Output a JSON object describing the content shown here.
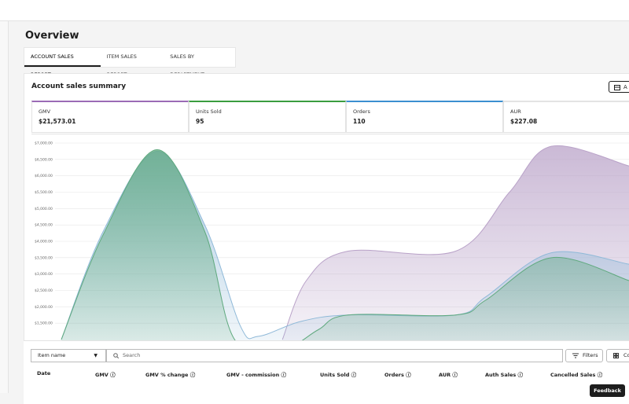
{
  "header": {
    "title": "Overview"
  },
  "tabs": [
    "ACCOUNT SALES REPORT",
    "ITEM SALES REPORT",
    "SALES BY DEPARTMENT"
  ],
  "summary": {
    "title": "Account sales summary",
    "button": "A",
    "metrics": [
      {
        "label": "GMV",
        "value": "$21,573.01",
        "color": "#9b6bb5"
      },
      {
        "label": "Units Sold",
        "value": "95",
        "color": "#3a9d3f"
      },
      {
        "label": "Orders",
        "value": "110",
        "color": "#3b8fd0"
      },
      {
        "label": "AUR",
        "value": "$227.08"
      }
    ]
  },
  "chart_data": {
    "type": "area",
    "xlim": [
      0,
      100
    ],
    "ylim": [
      1000,
      7000
    ],
    "grid": true,
    "yticks": [
      {
        "value": 7000,
        "label": "$7,000.00"
      },
      {
        "value": 6500,
        "label": "$6,500.00"
      },
      {
        "value": 6000,
        "label": "$6,000.00"
      },
      {
        "value": 5500,
        "label": "$5,500.00"
      },
      {
        "value": 5000,
        "label": "$5,000.00"
      },
      {
        "value": 4500,
        "label": "$4,500.00"
      },
      {
        "value": 4000,
        "label": "$4,000.00"
      },
      {
        "value": 3500,
        "label": "$3,500.00"
      },
      {
        "value": 3000,
        "label": "$3,000.00"
      },
      {
        "value": 2500,
        "label": "$2,500.00"
      },
      {
        "value": 2000,
        "label": "$2,000.00"
      },
      {
        "value": 1500,
        "label": "$1,500.00"
      }
    ],
    "series": [
      {
        "color": "#b9a2c8",
        "x": [
          42,
          46,
          53,
          71,
          80,
          87,
          100
        ],
        "values": [
          1000,
          2800,
          3700,
          3700,
          5500,
          6900,
          6300
        ]
      },
      {
        "color": "#8fb9d8",
        "x": [
          5,
          12,
          21,
          29,
          35,
          38,
          45,
          53,
          71,
          76,
          87,
          100
        ],
        "values": [
          1000,
          4300,
          6750,
          4500,
          1400,
          1100,
          1550,
          1750,
          1750,
          2300,
          3650,
          3300
        ]
      },
      {
        "color": "#5fa97e",
        "x": [
          5,
          12,
          21,
          29,
          34,
          42,
          48,
          53,
          71,
          76,
          87,
          100
        ],
        "values": [
          1000,
          4200,
          6800,
          4300,
          1000,
          700,
          1300,
          1750,
          1750,
          2200,
          3500,
          2800
        ]
      }
    ]
  },
  "table": {
    "filter": "Item name",
    "search": "Search",
    "buttons": [
      "Filters",
      "Co"
    ],
    "columns": [
      "Date",
      "GMV ⓘ",
      "GMV % change ⓘ",
      "GMV - commission ⓘ",
      "Units Sold ⓘ",
      "Orders ⓘ",
      "AUR ⓘ",
      "Auth Sales ⓘ",
      "Cancelled Sales ⓘ"
    ]
  },
  "feedback": "Feedback"
}
